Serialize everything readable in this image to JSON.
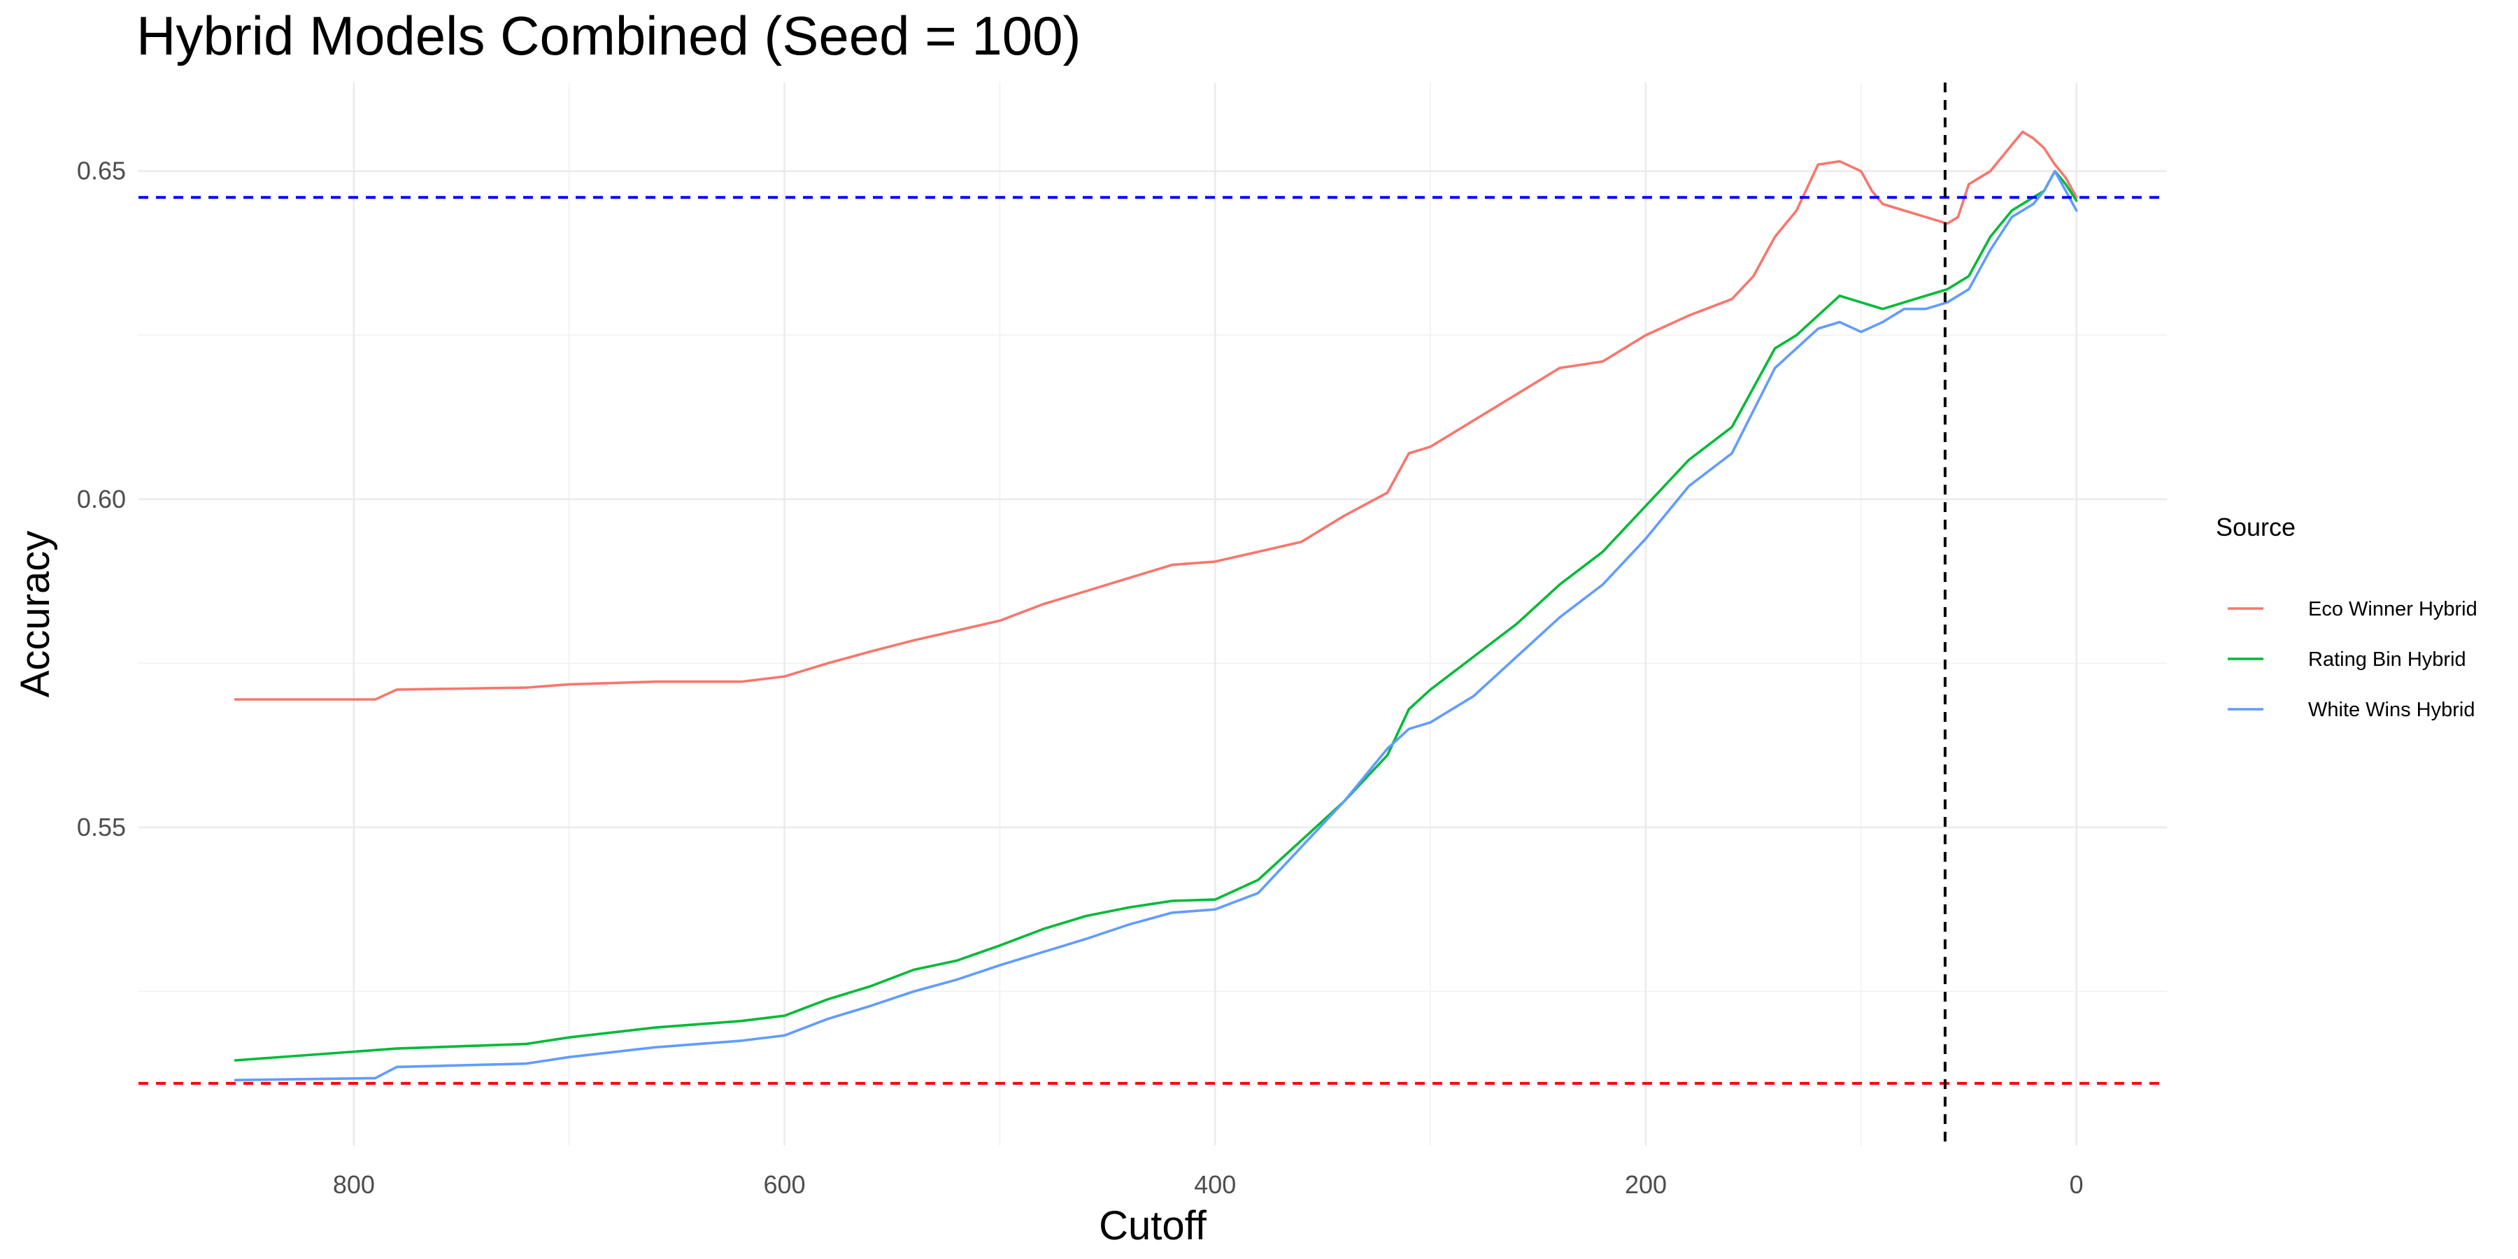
{
  "chart_data": {
    "type": "line",
    "title": "Hybrid Models Combined (Seed = 100)",
    "xlabel": "Cutoff",
    "ylabel": "Accuracy",
    "x_reversed": true,
    "xlim": [
      900,
      -42
    ],
    "ylim": [
      0.5015,
      0.6635
    ],
    "x_ticks": [
      800,
      600,
      400,
      200,
      0
    ],
    "x_tick_labels": [
      "800",
      "600",
      "400",
      "200",
      "0"
    ],
    "y_ticks": [
      0.55,
      0.6,
      0.65
    ],
    "y_tick_labels": [
      "0.55",
      "0.60",
      "0.65"
    ],
    "grid": true,
    "legend": {
      "title": "Source",
      "position": "right"
    },
    "reference_lines": [
      {
        "orientation": "horizontal",
        "value": 0.646,
        "color": "#0000ff",
        "style": "dashed"
      },
      {
        "orientation": "horizontal",
        "value": 0.511,
        "color": "#ff0000",
        "style": "dashed"
      },
      {
        "orientation": "vertical",
        "value": 61,
        "color": "#000000",
        "style": "dashed"
      }
    ],
    "series": [
      {
        "name": "Eco Winner Hybrid",
        "color": "#F8766D",
        "x": [
          855,
          790,
          780,
          720,
          700,
          660,
          620,
          600,
          580,
          560,
          540,
          520,
          500,
          480,
          460,
          440,
          420,
          400,
          380,
          360,
          340,
          320,
          310,
          300,
          280,
          260,
          240,
          220,
          200,
          180,
          160,
          150,
          140,
          130,
          120,
          110,
          100,
          95,
          90,
          80,
          70,
          60,
          55,
          50,
          40,
          30,
          25,
          20,
          15,
          10,
          5,
          0
        ],
        "y": [
          0.5695,
          0.5695,
          0.571,
          0.5713,
          0.5718,
          0.5722,
          0.5722,
          0.573,
          0.575,
          0.5768,
          0.5785,
          0.58,
          0.5815,
          0.584,
          0.586,
          0.588,
          0.59,
          0.5905,
          0.592,
          0.5935,
          0.5975,
          0.601,
          0.607,
          0.608,
          0.612,
          0.616,
          0.62,
          0.621,
          0.625,
          0.628,
          0.6305,
          0.634,
          0.64,
          0.644,
          0.651,
          0.6515,
          0.65,
          0.647,
          0.645,
          0.644,
          0.643,
          0.642,
          0.643,
          0.648,
          0.65,
          0.654,
          0.656,
          0.655,
          0.6535,
          0.651,
          0.649,
          0.646
        ]
      },
      {
        "name": "Rating Bin Hybrid",
        "color": "#00BA38",
        "x": [
          855,
          780,
          720,
          700,
          660,
          620,
          600,
          580,
          560,
          540,
          520,
          500,
          480,
          460,
          440,
          420,
          400,
          380,
          360,
          340,
          320,
          310,
          300,
          280,
          260,
          240,
          220,
          200,
          180,
          160,
          140,
          130,
          120,
          110,
          100,
          90,
          80,
          70,
          60,
          50,
          40,
          30,
          20,
          15,
          10,
          5,
          0
        ],
        "y": [
          0.5145,
          0.5163,
          0.517,
          0.518,
          0.5195,
          0.5205,
          0.5213,
          0.5238,
          0.5258,
          0.5283,
          0.5297,
          0.532,
          0.5345,
          0.5365,
          0.5378,
          0.5388,
          0.539,
          0.542,
          0.548,
          0.554,
          0.561,
          0.568,
          0.571,
          0.576,
          0.581,
          0.587,
          0.592,
          0.599,
          0.606,
          0.611,
          0.623,
          0.625,
          0.628,
          0.631,
          0.63,
          0.629,
          0.63,
          0.631,
          0.632,
          0.634,
          0.64,
          0.644,
          0.646,
          0.647,
          0.65,
          0.648,
          0.6455
        ]
      },
      {
        "name": "White Wins Hybrid",
        "color": "#619CFF",
        "x": [
          855,
          790,
          780,
          720,
          700,
          660,
          620,
          600,
          580,
          560,
          540,
          520,
          500,
          480,
          460,
          440,
          420,
          400,
          380,
          360,
          340,
          320,
          310,
          300,
          280,
          260,
          240,
          220,
          200,
          180,
          160,
          140,
          130,
          120,
          110,
          100,
          90,
          80,
          70,
          60,
          50,
          40,
          30,
          20,
          15,
          10,
          5,
          0
        ],
        "y": [
          0.5115,
          0.5118,
          0.5135,
          0.514,
          0.515,
          0.5165,
          0.5175,
          0.5183,
          0.5208,
          0.5228,
          0.525,
          0.5268,
          0.529,
          0.531,
          0.533,
          0.5352,
          0.537,
          0.5375,
          0.54,
          0.547,
          0.554,
          0.562,
          0.565,
          0.566,
          0.57,
          0.576,
          0.582,
          0.587,
          0.594,
          0.602,
          0.607,
          0.62,
          0.623,
          0.626,
          0.627,
          0.6255,
          0.627,
          0.629,
          0.629,
          0.63,
          0.632,
          0.638,
          0.643,
          0.645,
          0.647,
          0.65,
          0.647,
          0.644
        ]
      }
    ]
  }
}
